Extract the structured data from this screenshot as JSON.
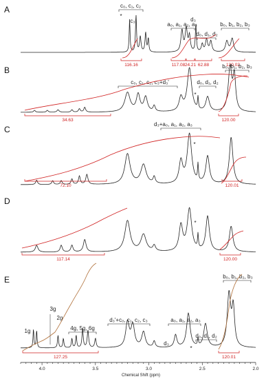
{
  "chart_data": {
    "type": "line",
    "xlabel": "Chemical Shift (ppm)",
    "xlim": [
      4.2,
      2.0
    ],
    "x_ticks": [
      "4.0",
      "3.5",
      "3.0",
      "2.5",
      "2.0"
    ],
    "colors": {
      "spectrum": "#222222",
      "integral": "#d02020",
      "integral_E": "#b0703a"
    },
    "panels": [
      {
        "letter": "A",
        "labels": [
          "c₀, c₁, c₂",
          "*",
          "c₃",
          "a₀, a₁, a₂, a₃",
          "d₃",
          "d₀, d₁, d₂",
          "b₀, b₁, b₂, b₃"
        ],
        "integrals": [
          "116.16",
          "117.08",
          "24.21",
          "62.88",
          "120.02"
        ],
        "peaks": [
          {
            "x": 3.18,
            "h": 0.85,
            "w": 0.005
          },
          {
            "x": 3.12,
            "h": 0.95,
            "w": 0.006
          },
          {
            "x": 3.08,
            "h": 0.4,
            "w": 0.008
          },
          {
            "x": 3.03,
            "h": 0.5,
            "w": 0.007
          },
          {
            "x": 3.005,
            "h": 0.35,
            "w": 0.006
          },
          {
            "x": 2.69,
            "h": 0.55,
            "w": 0.012
          },
          {
            "x": 2.65,
            "h": 0.6,
            "w": 0.012
          },
          {
            "x": 2.62,
            "h": 0.4,
            "w": 0.01
          },
          {
            "x": 2.56,
            "h": 0.7,
            "w": 0.006
          },
          {
            "x": 2.5,
            "h": 0.2,
            "w": 0.01
          },
          {
            "x": 2.46,
            "h": 0.32,
            "w": 0.012
          },
          {
            "x": 2.42,
            "h": 0.28,
            "w": 0.012
          },
          {
            "x": 2.27,
            "h": 0.28,
            "w": 0.015
          },
          {
            "x": 2.22,
            "h": 0.35,
            "w": 0.015
          }
        ]
      },
      {
        "letter": "B",
        "labels": [
          "c₀, c₁, c₂, c₃+d₃'",
          "b₀, b₁, b₂, b₃",
          "d₀, d₁, d₂",
          "*"
        ],
        "integrals": [
          "34.63",
          "120.00"
        ],
        "peaks": [
          {
            "x": 4.07,
            "h": 0.04,
            "w": 0.01
          },
          {
            "x": 3.95,
            "h": 0.04,
            "w": 0.01
          },
          {
            "x": 3.85,
            "h": 0.05,
            "w": 0.012
          },
          {
            "x": 3.72,
            "h": 0.05,
            "w": 0.01
          },
          {
            "x": 3.65,
            "h": 0.07,
            "w": 0.01
          },
          {
            "x": 3.6,
            "h": 0.1,
            "w": 0.01
          },
          {
            "x": 3.2,
            "h": 0.4,
            "w": 0.03
          },
          {
            "x": 3.1,
            "h": 0.35,
            "w": 0.02
          },
          {
            "x": 3.03,
            "h": 0.3,
            "w": 0.02
          },
          {
            "x": 2.95,
            "h": 0.12,
            "w": 0.012
          },
          {
            "x": 2.7,
            "h": 0.28,
            "w": 0.02
          },
          {
            "x": 2.62,
            "h": 0.9,
            "w": 0.025
          },
          {
            "x": 2.54,
            "h": 0.25,
            "w": 0.005
          },
          {
            "x": 2.45,
            "h": 0.3,
            "w": 0.02
          },
          {
            "x": 2.24,
            "h": 0.9,
            "w": 0.02
          },
          {
            "x": 2.2,
            "h": 0.7,
            "w": 0.015
          }
        ]
      },
      {
        "letter": "C",
        "labels": [
          "d₃+a₀, a₁, a₂, a₃",
          "*"
        ],
        "integrals": [
          "72.10",
          "120.01"
        ],
        "peaks": [
          {
            "x": 4.05,
            "h": 0.08,
            "w": 0.01
          },
          {
            "x": 3.9,
            "h": 0.07,
            "w": 0.01
          },
          {
            "x": 3.82,
            "h": 0.07,
            "w": 0.01
          },
          {
            "x": 3.72,
            "h": 0.1,
            "w": 0.01
          },
          {
            "x": 3.65,
            "h": 0.15,
            "w": 0.01
          },
          {
            "x": 3.58,
            "h": 0.18,
            "w": 0.012
          },
          {
            "x": 3.2,
            "h": 0.55,
            "w": 0.03
          },
          {
            "x": 3.05,
            "h": 0.35,
            "w": 0.03
          },
          {
            "x": 2.95,
            "h": 0.12,
            "w": 0.012
          },
          {
            "x": 2.7,
            "h": 0.4,
            "w": 0.02
          },
          {
            "x": 2.62,
            "h": 0.9,
            "w": 0.025
          },
          {
            "x": 2.54,
            "h": 0.3,
            "w": 0.005
          },
          {
            "x": 2.45,
            "h": 0.5,
            "w": 0.02
          },
          {
            "x": 2.23,
            "h": 0.85,
            "w": 0.02
          }
        ]
      },
      {
        "letter": "D",
        "labels": [
          "*"
        ],
        "integrals": [
          "117.14",
          "120.00"
        ],
        "peaks": [
          {
            "x": 4.05,
            "h": 0.12,
            "w": 0.015
          },
          {
            "x": 3.82,
            "h": 0.12,
            "w": 0.012
          },
          {
            "x": 3.72,
            "h": 0.12,
            "w": 0.012
          },
          {
            "x": 3.6,
            "h": 0.22,
            "w": 0.015
          },
          {
            "x": 3.2,
            "h": 0.55,
            "w": 0.03
          },
          {
            "x": 3.05,
            "h": 0.3,
            "w": 0.03
          },
          {
            "x": 2.95,
            "h": 0.1,
            "w": 0.015
          },
          {
            "x": 2.7,
            "h": 0.45,
            "w": 0.02
          },
          {
            "x": 2.62,
            "h": 0.75,
            "w": 0.025
          },
          {
            "x": 2.54,
            "h": 0.25,
            "w": 0.005
          },
          {
            "x": 2.45,
            "h": 0.62,
            "w": 0.02
          },
          {
            "x": 2.23,
            "h": 0.45,
            "w": 0.02
          }
        ]
      },
      {
        "letter": "E",
        "labels": [
          "1g",
          "3g",
          "2g",
          "4g, 5g, 6g",
          "d₃'+c₀, c₁, c₂, c₃",
          "a₀, a₁, a₂, a₃",
          "d₃",
          "*",
          "d₀, d₁, d₂",
          "b₀, b₁, b₂, b₃"
        ],
        "integrals": [
          "127.25",
          "120.01"
        ],
        "peaks": [
          {
            "x": 4.08,
            "h": 0.3,
            "w": 0.005
          },
          {
            "x": 4.05,
            "h": 0.28,
            "w": 0.005
          },
          {
            "x": 3.85,
            "h": 0.2,
            "w": 0.006
          },
          {
            "x": 3.8,
            "h": 0.15,
            "w": 0.006
          },
          {
            "x": 3.72,
            "h": 0.15,
            "w": 0.006
          },
          {
            "x": 3.68,
            "h": 0.2,
            "w": 0.006
          },
          {
            "x": 3.62,
            "h": 0.3,
            "w": 0.007
          },
          {
            "x": 3.57,
            "h": 0.28,
            "w": 0.008
          },
          {
            "x": 3.5,
            "h": 0.15,
            "w": 0.008
          },
          {
            "x": 3.2,
            "h": 0.4,
            "w": 0.02
          },
          {
            "x": 3.15,
            "h": 0.35,
            "w": 0.02
          },
          {
            "x": 3.05,
            "h": 0.25,
            "w": 0.02
          },
          {
            "x": 2.95,
            "h": 0.1,
            "w": 0.012
          },
          {
            "x": 2.75,
            "h": 0.2,
            "w": 0.015
          },
          {
            "x": 2.63,
            "h": 0.55,
            "w": 0.02
          },
          {
            "x": 2.54,
            "h": 0.12,
            "w": 0.005
          },
          {
            "x": 2.47,
            "h": 0.38,
            "w": 0.02
          },
          {
            "x": 2.25,
            "h": 0.85,
            "w": 0.02
          },
          {
            "x": 2.21,
            "h": 0.6,
            "w": 0.015
          }
        ]
      }
    ]
  }
}
